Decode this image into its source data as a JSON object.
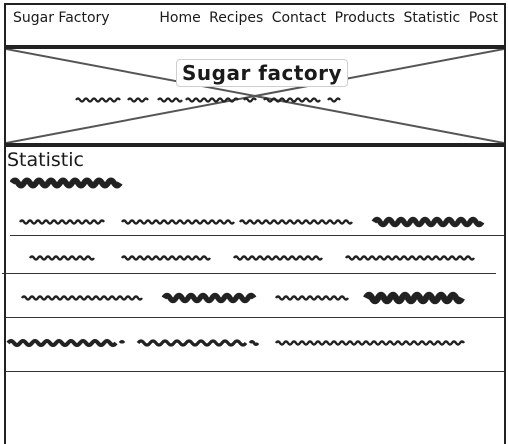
{
  "nav": {
    "brand": "Sugar Factory",
    "links": [
      "Home",
      "Recipes",
      "Contact",
      "Products",
      "Statistic",
      "Post"
    ]
  },
  "hero": {
    "title": "Sugar factory"
  },
  "statistic": {
    "heading": "Statistic"
  }
}
